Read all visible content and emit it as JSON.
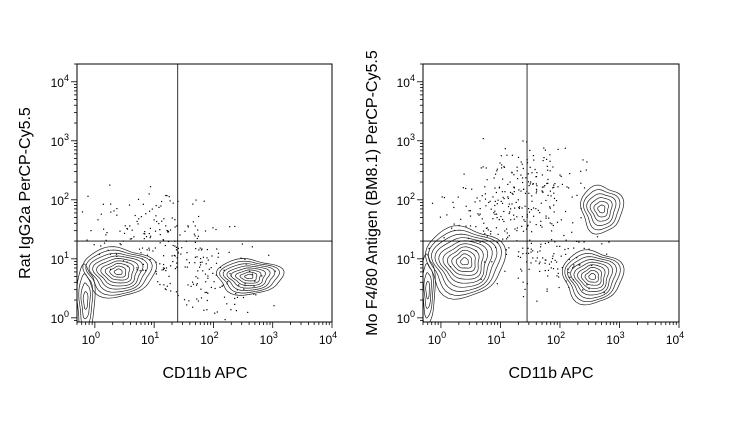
{
  "chart_data": [
    {
      "type": "contour",
      "xlabel": "CD11b APC",
      "ylabel": "Rat IgG2a PerCP-Cy5.5",
      "scale": "log",
      "xlim": [
        0.5,
        10000
      ],
      "ylim": [
        0.85,
        20000
      ],
      "x_ticks": [
        {
          "base": "10",
          "exp": "0",
          "value": 1
        },
        {
          "base": "10",
          "exp": "1",
          "value": 10
        },
        {
          "base": "10",
          "exp": "2",
          "value": 100
        },
        {
          "base": "10",
          "exp": "3",
          "value": 1000
        },
        {
          "base": "10",
          "exp": "4",
          "value": 10000
        }
      ],
      "y_ticks": [
        {
          "base": "10",
          "exp": "0",
          "value": 1
        },
        {
          "base": "10",
          "exp": "1",
          "value": 10
        },
        {
          "base": "10",
          "exp": "2",
          "value": 100
        },
        {
          "base": "10",
          "exp": "3",
          "value": 1000
        },
        {
          "base": "10",
          "exp": "4",
          "value": 10000
        }
      ],
      "quadrant_gate": {
        "x": 25,
        "y": 20
      },
      "populations": [
        {
          "x": 2.5,
          "y": 6,
          "sx": 0.6,
          "sy": 0.42,
          "levels": 9
        },
        {
          "x": 400,
          "y": 5,
          "sx": 0.55,
          "sy": 0.3,
          "levels": 8
        },
        {
          "x": 0.7,
          "y": 2,
          "sx": 0.15,
          "sy": 0.6,
          "levels": 4
        }
      ],
      "scatter": [
        {
          "x": 8,
          "y": 30,
          "n": 140
        },
        {
          "x": 40,
          "y": 8,
          "n": 90
        },
        {
          "x": 150,
          "y": 3,
          "n": 60
        }
      ]
    },
    {
      "type": "contour",
      "xlabel": "CD11b APC",
      "ylabel": "Mo F4/80 Antigen (BM8.1) PerCP-Cy5.5",
      "scale": "log",
      "xlim": [
        0.5,
        10000
      ],
      "ylim": [
        0.85,
        20000
      ],
      "x_ticks": [
        {
          "base": "10",
          "exp": "0",
          "value": 1
        },
        {
          "base": "10",
          "exp": "1",
          "value": 10
        },
        {
          "base": "10",
          "exp": "2",
          "value": 100
        },
        {
          "base": "10",
          "exp": "3",
          "value": 1000
        },
        {
          "base": "10",
          "exp": "4",
          "value": 10000
        }
      ],
      "y_ticks": [
        {
          "base": "10",
          "exp": "0",
          "value": 1
        },
        {
          "base": "10",
          "exp": "1",
          "value": 10
        },
        {
          "base": "10",
          "exp": "2",
          "value": 100
        },
        {
          "base": "10",
          "exp": "3",
          "value": 1000
        },
        {
          "base": "10",
          "exp": "4",
          "value": 10000
        }
      ],
      "quadrant_gate": {
        "x": 28,
        "y": 20
      },
      "populations": [
        {
          "x": 2.5,
          "y": 9,
          "sx": 0.65,
          "sy": 0.6,
          "levels": 10
        },
        {
          "x": 350,
          "y": 5,
          "sx": 0.5,
          "sy": 0.45,
          "levels": 9
        },
        {
          "x": 500,
          "y": 70,
          "sx": 0.35,
          "sy": 0.4,
          "levels": 6
        },
        {
          "x": 0.6,
          "y": 3,
          "sx": 0.12,
          "sy": 0.6,
          "levels": 4
        }
      ],
      "scatter": [
        {
          "x": 30,
          "y": 200,
          "n": 160
        },
        {
          "x": 8,
          "y": 60,
          "n": 120
        },
        {
          "x": 60,
          "y": 10,
          "n": 110
        }
      ]
    }
  ]
}
